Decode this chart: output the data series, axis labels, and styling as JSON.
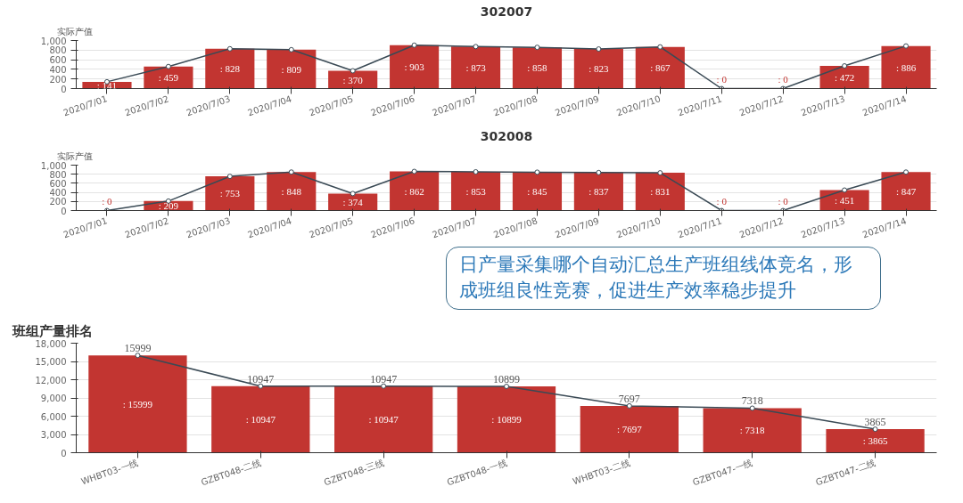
{
  "chart_data": [
    {
      "type": "bar",
      "title": "302007",
      "ylabel": "实际产值",
      "categories": [
        "2020/7/01",
        "2020/7/02",
        "2020/7/03",
        "2020/7/04",
        "2020/7/05",
        "2020/7/06",
        "2020/7/07",
        "2020/7/08",
        "2020/7/09",
        "2020/7/10",
        "2020/7/11",
        "2020/7/12",
        "2020/7/13",
        "2020/7/14"
      ],
      "series": [
        {
          "color": "#c23531",
          "values": [
            141,
            459,
            828,
            809,
            370,
            903,
            873,
            858,
            823,
            867,
            0,
            0,
            472,
            886
          ],
          "value_labels": [
            ": 141",
            ": 459",
            ": 828",
            ": 809",
            ": 370",
            ": 903",
            ": 873",
            ": 858",
            ": 823",
            ": 867",
            ": 0",
            ": 0",
            ": 472",
            ": 886"
          ]
        },
        {
          "type": "line",
          "color": "#3a4a55",
          "values": [
            141,
            459,
            828,
            809,
            370,
            903,
            873,
            858,
            823,
            867,
            0,
            0,
            472,
            886
          ]
        }
      ],
      "ylim": [
        0,
        1000
      ],
      "yticks": [
        0,
        200,
        400,
        600,
        800,
        {
          "value": 1000,
          "label": "1,000"
        }
      ],
      "grid": "y",
      "marker": "circle"
    },
    {
      "type": "bar",
      "title": "302008",
      "ylabel": "实际产值",
      "categories": [
        "2020/7/01",
        "2020/7/02",
        "2020/7/03",
        "2020/7/04",
        "2020/7/05",
        "2020/7/06",
        "2020/7/07",
        "2020/7/08",
        "2020/7/09",
        "2020/7/10",
        "2020/7/11",
        "2020/7/12",
        "2020/7/13",
        "2020/7/14"
      ],
      "series": [
        {
          "color": "#c23531",
          "values": [
            0,
            209,
            753,
            848,
            374,
            862,
            853,
            845,
            837,
            831,
            0,
            0,
            451,
            847
          ],
          "value_labels": [
            ": 0",
            ": 209",
            ": 753",
            ": 848",
            ": 374",
            ": 862",
            ": 853",
            ": 845",
            ": 837",
            ": 831",
            ": 0",
            ": 0",
            ": 451",
            ": 847"
          ]
        },
        {
          "type": "line",
          "color": "#3a4a55",
          "values": [
            0,
            209,
            753,
            848,
            374,
            862,
            853,
            845,
            837,
            831,
            0,
            0,
            451,
            847
          ]
        }
      ],
      "ylim": [
        0,
        1000
      ],
      "yticks": [
        0,
        200,
        400,
        600,
        800,
        {
          "value": 1000,
          "label": "1,000"
        }
      ],
      "grid": "y",
      "marker": "circle"
    },
    {
      "type": "bar",
      "title": "班组产量排名",
      "categories": [
        "WHBT03-一线",
        "GZBT048-二线",
        "GZBT048-三线",
        "GZBT048-一线",
        "WHBT03-二线",
        "GZBT047-一线",
        "GZBT047-二线"
      ],
      "series": [
        {
          "color": "#c23531",
          "values": [
            15999,
            10947,
            10947,
            10899,
            7697,
            7318,
            3865
          ],
          "value_labels": [
            ": 15999",
            ": 10947",
            ": 10947",
            ": 10899",
            ": 7697",
            ": 7318",
            ": 3865"
          ]
        },
        {
          "type": "line",
          "color": "#3a4a55",
          "values": [
            15999,
            10947,
            10947,
            10899,
            7697,
            7318,
            3865
          ],
          "value_labels": [
            "15999",
            "10947",
            "10947",
            "10899",
            "7697",
            "7318",
            "3865"
          ]
        }
      ],
      "ylim": [
        0,
        18000
      ],
      "yticks": [
        0,
        {
          "value": 3000,
          "label": "3,000"
        },
        {
          "value": 6000,
          "label": "6,000"
        },
        {
          "value": 9000,
          "label": "9,000"
        },
        {
          "value": 12000,
          "label": "12,000"
        },
        {
          "value": 15000,
          "label": "15,000"
        },
        {
          "value": 18000,
          "label": "18,000"
        }
      ],
      "grid": "y",
      "marker": "circle",
      "annotations": [
        "日产量采集哪个自动汇总生产班组线体竞名，形成班组良性竞赛，促进生产效率稳步提升"
      ]
    }
  ]
}
